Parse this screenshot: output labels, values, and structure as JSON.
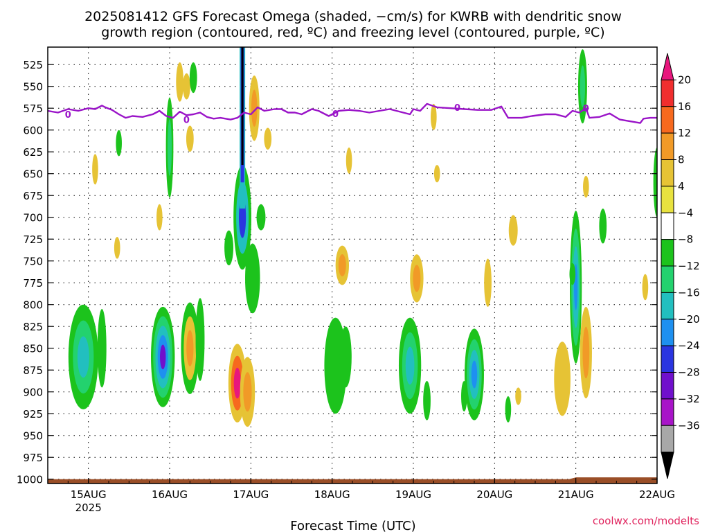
{
  "chart_data": {
    "type": "heatmap",
    "title_line1": "2025081412 GFS Forecast Omega (shaded, −cm/s) for KWRB with dendritic snow",
    "title_line2": "growth region (contoured, red, ºC) and freezing level (contoured, purple, ºC)",
    "xlabel": "Forecast Time (UTC)",
    "credit": "coolwx.com/modelts",
    "x_axis": {
      "unit": "hours since 2025-08-14 12Z",
      "range": [
        0,
        180
      ],
      "ticks": [
        {
          "value": 12,
          "label": "15AUG",
          "sublabel": "2025"
        },
        {
          "value": 36,
          "label": "16AUG",
          "sublabel": ""
        },
        {
          "value": 60,
          "label": "17AUG",
          "sublabel": ""
        },
        {
          "value": 84,
          "label": "18AUG",
          "sublabel": ""
        },
        {
          "value": 108,
          "label": "19AUG",
          "sublabel": ""
        },
        {
          "value": 132,
          "label": "20AUG",
          "sublabel": ""
        },
        {
          "value": 156,
          "label": "21AUG",
          "sublabel": ""
        },
        {
          "value": 180,
          "label": "22AUG",
          "sublabel": ""
        }
      ]
    },
    "y_axis": {
      "unit": "hPa",
      "range": [
        1005,
        505
      ],
      "ticks": [
        525,
        550,
        575,
        600,
        625,
        650,
        675,
        700,
        725,
        750,
        775,
        800,
        825,
        850,
        875,
        900,
        925,
        950,
        975,
        1000
      ]
    },
    "colorbar": {
      "labels": [
        "20",
        "16",
        "12",
        "8",
        "4",
        "−4",
        "−8",
        "−12",
        "−16",
        "−20",
        "−24",
        "−28",
        "−32",
        "−36"
      ],
      "colors": [
        "#e8177d",
        "#f02e2e",
        "#f7691e",
        "#f19a27",
        "#e6c335",
        "#e8e23f",
        "#ffffff",
        "#1cc31c",
        "#23d26e",
        "#22bfbf",
        "#1e90f0",
        "#2a35e0",
        "#7010cc",
        "#a814c8",
        "#a8a8a8",
        "#000000"
      ]
    },
    "freezing_level": {
      "label": "0",
      "color": "#9a14c8",
      "points": [
        [
          0,
          578
        ],
        [
          3,
          580
        ],
        [
          6,
          576
        ],
        [
          9,
          578
        ],
        [
          12,
          575
        ],
        [
          14,
          576
        ],
        [
          16,
          572
        ],
        [
          17,
          574
        ],
        [
          19,
          577
        ],
        [
          21,
          582
        ],
        [
          23,
          586
        ],
        [
          25,
          584
        ],
        [
          28,
          585
        ],
        [
          31,
          582
        ],
        [
          33,
          578
        ],
        [
          35,
          584
        ],
        [
          37,
          586
        ],
        [
          39,
          579
        ],
        [
          41,
          583
        ],
        [
          43,
          582
        ],
        [
          45,
          580
        ],
        [
          47,
          585
        ],
        [
          49,
          587
        ],
        [
          51,
          586
        ],
        [
          54,
          588
        ],
        [
          56,
          586
        ],
        [
          58,
          580
        ],
        [
          60,
          582
        ],
        [
          62,
          574
        ],
        [
          64,
          578
        ],
        [
          67,
          576
        ],
        [
          69,
          576
        ],
        [
          71,
          580
        ],
        [
          73,
          580
        ],
        [
          75,
          582
        ],
        [
          78,
          576
        ],
        [
          80,
          578
        ],
        [
          83,
          584
        ],
        [
          86,
          578
        ],
        [
          89,
          577
        ],
        [
          92,
          578
        ],
        [
          95,
          580
        ],
        [
          98,
          578
        ],
        [
          101,
          576
        ],
        [
          103,
          578
        ],
        [
          105,
          580
        ],
        [
          107,
          582
        ],
        [
          108,
          576
        ],
        [
          110,
          578
        ],
        [
          112,
          570
        ],
        [
          115,
          574
        ],
        [
          119,
          575
        ],
        [
          123,
          576
        ],
        [
          127,
          577
        ],
        [
          131,
          577
        ],
        [
          134,
          573
        ],
        [
          136,
          586
        ],
        [
          140,
          586
        ],
        [
          143,
          584
        ],
        [
          147,
          582
        ],
        [
          150,
          582
        ],
        [
          153,
          585
        ],
        [
          155,
          578
        ],
        [
          157,
          580
        ],
        [
          159,
          575
        ],
        [
          160,
          586
        ],
        [
          163,
          585
        ],
        [
          166,
          581
        ],
        [
          169,
          588
        ],
        [
          172,
          590
        ],
        [
          175,
          592
        ],
        [
          176,
          587
        ],
        [
          178,
          586
        ],
        [
          180,
          586
        ]
      ],
      "label_positions": [
        [
          6,
          582
        ],
        [
          41,
          588
        ],
        [
          85,
          581
        ],
        [
          121,
          574
        ],
        [
          159,
          575
        ]
      ]
    },
    "terrain": {
      "color": "#9a4e27",
      "top_hPa": 1000,
      "top_hPa_right": 998
    },
    "omega_cells": [
      {
        "x": 10.5,
        "p": 860,
        "wx": 2.0,
        "wp": 120,
        "bands": [
          "#1cc31c",
          "#23d26e",
          "#22bfbf"
        ]
      },
      {
        "x": 16,
        "p": 850,
        "wx": 0.6,
        "wp": 90,
        "bands": [
          "#1cc31c"
        ]
      },
      {
        "x": 14,
        "p": 645,
        "wx": 0.4,
        "wp": 35,
        "bands": [
          "#e6c335"
        ]
      },
      {
        "x": 21,
        "p": 615,
        "wx": 0.4,
        "wp": 30,
        "bands": [
          "#1cc31c"
        ]
      },
      {
        "x": 20.5,
        "p": 735,
        "wx": 0.4,
        "wp": 25,
        "bands": [
          "#e6c335"
        ]
      },
      {
        "x": 34,
        "p": 860,
        "wx": 1.6,
        "wp": 115,
        "bands": [
          "#1cc31c",
          "#23d26e",
          "#22bfbf",
          "#1e90f0",
          "#7010cc"
        ]
      },
      {
        "x": 36,
        "p": 620,
        "wx": 0.5,
        "wp": 115,
        "bands": [
          "#1cc31c",
          "#23d26e"
        ]
      },
      {
        "x": 33,
        "p": 700,
        "wx": 0.4,
        "wp": 30,
        "bands": [
          "#e6c335"
        ]
      },
      {
        "x": 39,
        "p": 545,
        "wx": 0.5,
        "wp": 45,
        "bands": [
          "#e6c335"
        ]
      },
      {
        "x": 41,
        "p": 550,
        "wx": 0.5,
        "wp": 30,
        "bands": [
          "#e6c335"
        ]
      },
      {
        "x": 42,
        "p": 610,
        "wx": 0.5,
        "wp": 30,
        "bands": [
          "#e6c335"
        ]
      },
      {
        "x": 43,
        "p": 540,
        "wx": 0.5,
        "wp": 35,
        "bands": [
          "#1cc31c"
        ]
      },
      {
        "x": 42,
        "p": 850,
        "wx": 1.2,
        "wp": 105,
        "bands": [
          "#1cc31c",
          "#e6c335",
          "#f19a27"
        ]
      },
      {
        "x": 45,
        "p": 840,
        "wx": 0.6,
        "wp": 95,
        "bands": [
          "#1cc31c"
        ]
      },
      {
        "x": 53.5,
        "p": 735,
        "wx": 0.6,
        "wp": 40,
        "bands": [
          "#1cc31c"
        ]
      },
      {
        "x": 57.5,
        "p": 700,
        "wx": 1.2,
        "wp": 120,
        "bands": [
          "#1cc31c",
          "#22bfbf",
          "#2a35e0"
        ]
      },
      {
        "x": 56,
        "p": 890,
        "wx": 1.2,
        "wp": 90,
        "bands": [
          "#e6c335",
          "#f7691e",
          "#e8177d"
        ]
      },
      {
        "x": 59,
        "p": 900,
        "wx": 1.0,
        "wp": 80,
        "bands": [
          "#e6c335",
          "#f19a27"
        ]
      },
      {
        "x": 60.5,
        "p": 770,
        "wx": 1.0,
        "wp": 80,
        "bands": [
          "#1cc31c"
        ]
      },
      {
        "x": 61,
        "p": 575,
        "wx": 0.7,
        "wp": 75,
        "bands": [
          "#e6c335",
          "#f19a27"
        ]
      },
      {
        "x": 63,
        "p": 700,
        "wx": 0.6,
        "wp": 30,
        "bands": [
          "#1cc31c"
        ]
      },
      {
        "x": 65,
        "p": 610,
        "wx": 0.5,
        "wp": 25,
        "bands": [
          "#e6c335"
        ]
      },
      {
        "x": 85,
        "p": 870,
        "wx": 1.5,
        "wp": 110,
        "bands": [
          "#1cc31c"
        ]
      },
      {
        "x": 88,
        "p": 860,
        "wx": 0.8,
        "wp": 70,
        "bands": [
          "#1cc31c"
        ]
      },
      {
        "x": 87,
        "p": 755,
        "wx": 0.9,
        "wp": 45,
        "bands": [
          "#e6c335",
          "#f19a27"
        ]
      },
      {
        "x": 89,
        "p": 635,
        "wx": 0.4,
        "wp": 30,
        "bands": [
          "#e6c335"
        ]
      },
      {
        "x": 107,
        "p": 870,
        "wx": 1.5,
        "wp": 110,
        "bands": [
          "#1cc31c",
          "#23d26e",
          "#22bfbf"
        ]
      },
      {
        "x": 109,
        "p": 770,
        "wx": 0.9,
        "wp": 55,
        "bands": [
          "#e6c335",
          "#f19a27"
        ]
      },
      {
        "x": 114,
        "p": 585,
        "wx": 0.4,
        "wp": 30,
        "bands": [
          "#e6c335"
        ]
      },
      {
        "x": 115,
        "p": 650,
        "wx": 0.4,
        "wp": 20,
        "bands": [
          "#e6c335"
        ]
      },
      {
        "x": 112,
        "p": 910,
        "wx": 0.5,
        "wp": 45,
        "bands": [
          "#1cc31c"
        ]
      },
      {
        "x": 126,
        "p": 880,
        "wx": 1.3,
        "wp": 105,
        "bands": [
          "#1cc31c",
          "#23d26e",
          "#22bfbf",
          "#1e90f0"
        ]
      },
      {
        "x": 123,
        "p": 905,
        "wx": 0.4,
        "wp": 35,
        "bands": [
          "#1cc31c"
        ]
      },
      {
        "x": 130,
        "p": 775,
        "wx": 0.5,
        "wp": 55,
        "bands": [
          "#e6c335"
        ]
      },
      {
        "x": 136,
        "p": 920,
        "wx": 0.4,
        "wp": 30,
        "bands": [
          "#1cc31c"
        ]
      },
      {
        "x": 139,
        "p": 905,
        "wx": 0.4,
        "wp": 20,
        "bands": [
          "#e6c335"
        ]
      },
      {
        "x": 137.5,
        "p": 715,
        "wx": 0.6,
        "wp": 35,
        "bands": [
          "#e6c335"
        ]
      },
      {
        "x": 152,
        "p": 885,
        "wx": 1.1,
        "wp": 85,
        "bands": [
          "#e6c335"
        ]
      },
      {
        "x": 156,
        "p": 780,
        "wx": 0.8,
        "wp": 175,
        "bands": [
          "#1cc31c",
          "#23d26e",
          "#22bfbf",
          "#1e90f0"
        ]
      },
      {
        "x": 159,
        "p": 855,
        "wx": 0.8,
        "wp": 105,
        "bands": [
          "#e6c335",
          "#f19a27"
        ]
      },
      {
        "x": 155,
        "p": 765,
        "wx": 0.4,
        "wp": 25,
        "bands": [
          "#1cc31c"
        ]
      },
      {
        "x": 158,
        "p": 550,
        "wx": 0.6,
        "wp": 85,
        "bands": [
          "#1cc31c",
          "#23d26e"
        ]
      },
      {
        "x": 159,
        "p": 665,
        "wx": 0.4,
        "wp": 25,
        "bands": [
          "#e6c335"
        ]
      },
      {
        "x": 164,
        "p": 710,
        "wx": 0.5,
        "wp": 40,
        "bands": [
          "#1cc31c"
        ]
      },
      {
        "x": 176.5,
        "p": 780,
        "wx": 0.4,
        "wp": 30,
        "bands": [
          "#e6c335"
        ]
      },
      {
        "x": 180,
        "p": 660,
        "wx": 0.5,
        "wp": 80,
        "bands": [
          "#1cc31c"
        ]
      }
    ],
    "grid": true
  }
}
